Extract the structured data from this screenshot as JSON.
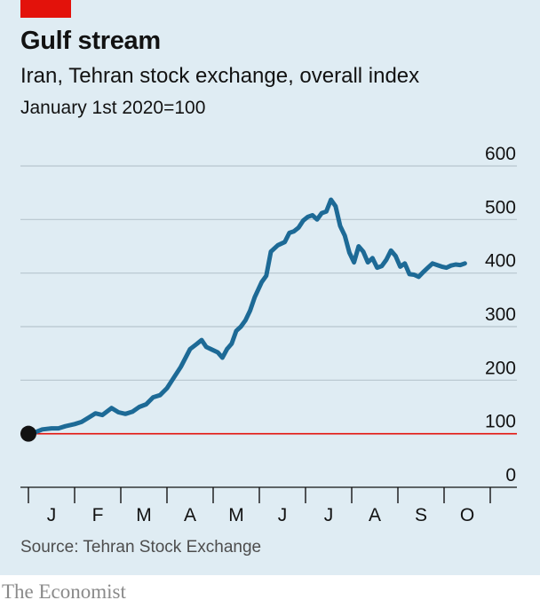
{
  "header": {
    "title": "Gulf stream",
    "subtitle": "Iran, Tehran stock exchange, overall index",
    "unit": "January 1st 2020=100"
  },
  "footer": {
    "source": "Source: Tehran Stock Exchange",
    "brand": "The Economist"
  },
  "colors": {
    "background": "#dfecf3",
    "line": "#1d6a96",
    "baseline": "#e3120b",
    "accent": "#e3120b",
    "gridline": "#b7c6ce",
    "marker": "#121212"
  },
  "chart_data": {
    "type": "line",
    "title": "Gulf stream",
    "subtitle": "Iran, Tehran stock exchange, overall index",
    "unit": "January 1st 2020=100",
    "xlabel": "",
    "ylabel": "",
    "x_tick_labels": [
      "J",
      "F",
      "M",
      "A",
      "M",
      "J",
      "J",
      "A",
      "S",
      "O"
    ],
    "xlim": [
      0,
      11
    ],
    "ylim": [
      0,
      600
    ],
    "y_ticks": [
      0,
      100,
      200,
      300,
      400,
      500,
      600
    ],
    "grid": true,
    "reference_line": 100,
    "start_marker": true,
    "series": [
      {
        "name": "",
        "x": [
          0.0,
          0.15,
          0.3,
          0.5,
          0.65,
          0.8,
          1.0,
          1.15,
          1.3,
          1.45,
          1.6,
          1.8,
          1.95,
          2.1,
          2.25,
          2.4,
          2.55,
          2.7,
          2.85,
          3.0,
          3.15,
          3.3,
          3.5,
          3.65,
          3.75,
          3.85,
          3.95,
          4.1,
          4.2,
          4.3,
          4.4,
          4.5,
          4.6,
          4.7,
          4.8,
          4.9,
          5.05,
          5.15,
          5.25,
          5.4,
          5.55,
          5.65,
          5.75,
          5.85,
          5.95,
          6.05,
          6.15,
          6.25,
          6.35,
          6.45,
          6.55,
          6.65,
          6.75,
          6.85,
          6.95,
          7.05,
          7.15,
          7.25,
          7.35,
          7.45,
          7.55,
          7.65,
          7.75,
          7.85,
          7.95,
          8.05,
          8.15,
          8.25,
          8.35,
          8.45,
          8.55,
          8.65,
          8.75,
          8.85,
          8.95,
          9.05,
          9.15,
          9.25,
          9.35,
          9.45
        ],
        "y": [
          100,
          103,
          108,
          110,
          110,
          114,
          118,
          122,
          130,
          138,
          135,
          148,
          140,
          137,
          141,
          150,
          155,
          168,
          172,
          185,
          205,
          225,
          258,
          268,
          275,
          262,
          258,
          252,
          242,
          258,
          268,
          292,
          300,
          312,
          330,
          355,
          383,
          395,
          440,
          452,
          458,
          475,
          478,
          485,
          498,
          505,
          508,
          500,
          512,
          515,
          537,
          525,
          488,
          470,
          438,
          420,
          450,
          440,
          420,
          428,
          410,
          413,
          425,
          442,
          432,
          412,
          418,
          398,
          397,
          393,
          402,
          410,
          418,
          415,
          412,
          410,
          414,
          416,
          415,
          418
        ]
      }
    ]
  }
}
